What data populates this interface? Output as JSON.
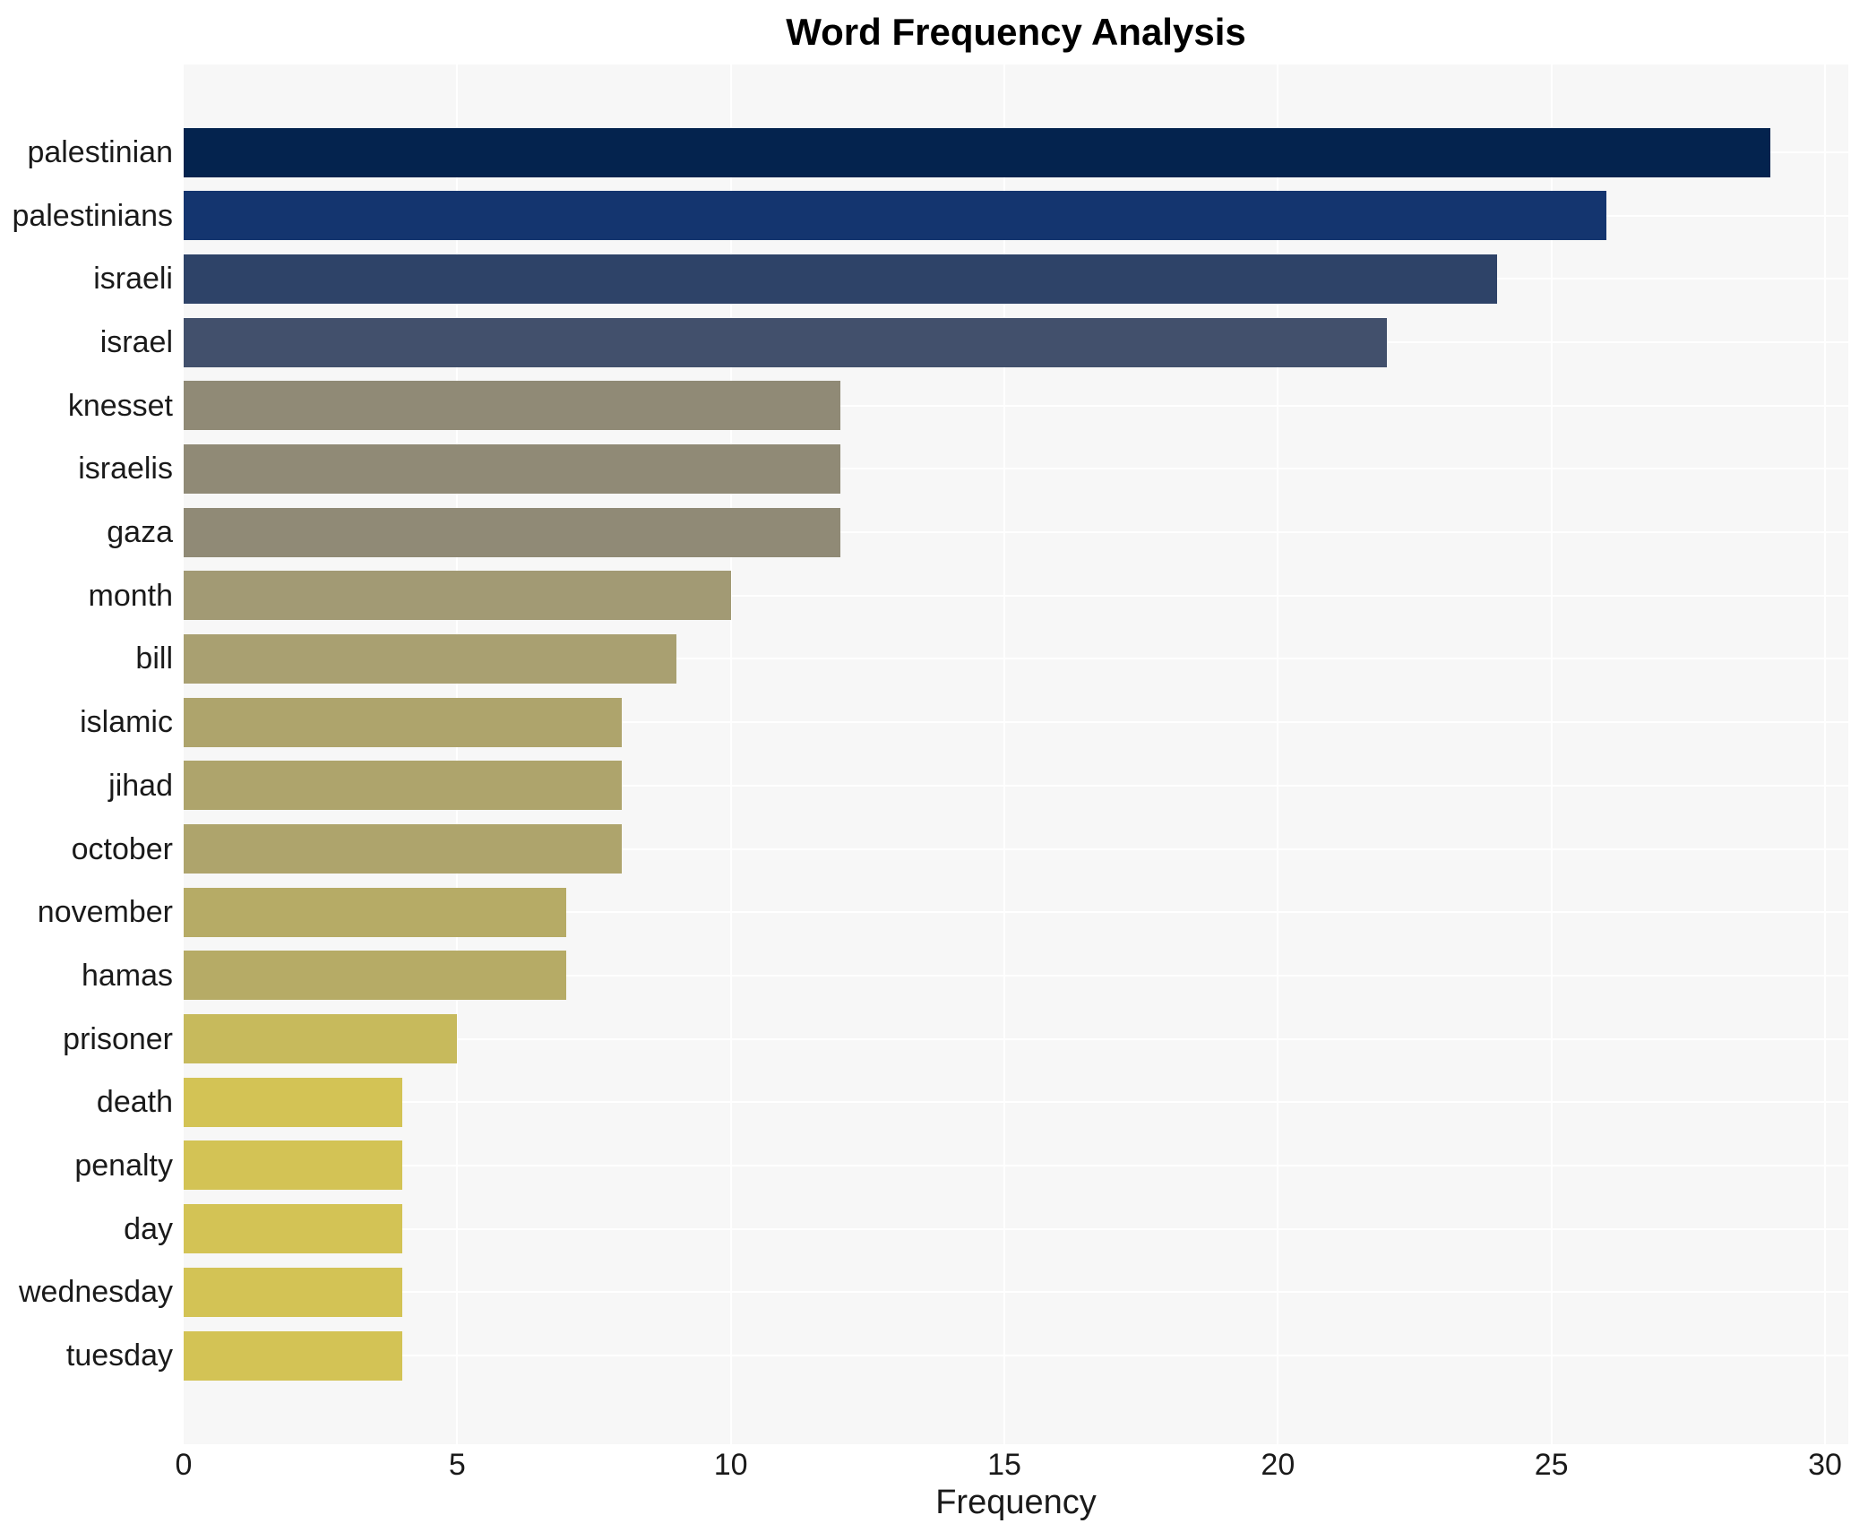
{
  "chart_data": {
    "type": "bar",
    "orientation": "horizontal",
    "title": "Word Frequency Analysis",
    "xlabel": "Frequency",
    "ylabel": "",
    "xlim": [
      0,
      30
    ],
    "xticks": [
      0,
      5,
      10,
      15,
      20,
      25,
      30
    ],
    "grid": true,
    "legend": "none",
    "categories": [
      "palestinian",
      "palestinians",
      "israeli",
      "israel",
      "knesset",
      "israelis",
      "gaza",
      "month",
      "bill",
      "islamic",
      "jihad",
      "october",
      "november",
      "hamas",
      "prisoner",
      "death",
      "penalty",
      "day",
      "wednesday",
      "tuesday"
    ],
    "values": [
      29,
      26,
      24,
      22,
      12,
      12,
      12,
      10,
      9,
      8,
      8,
      8,
      7,
      7,
      5,
      4,
      4,
      4,
      4,
      4
    ],
    "bar_colors": [
      "#04234e",
      "#14356f",
      "#2e4368",
      "#42506c",
      "#908a76",
      "#908a76",
      "#908a76",
      "#a29a74",
      "#a9a071",
      "#aea46c",
      "#aea46c",
      "#aea46c",
      "#b6ab66",
      "#b6ab66",
      "#c7ba5c",
      "#d3c355",
      "#d3c355",
      "#d3c355",
      "#d3c355",
      "#d3c355"
    ],
    "plot_bg": "#f7f7f7",
    "grid_color": "#ffffff",
    "text_color": "#1a1a1a"
  }
}
